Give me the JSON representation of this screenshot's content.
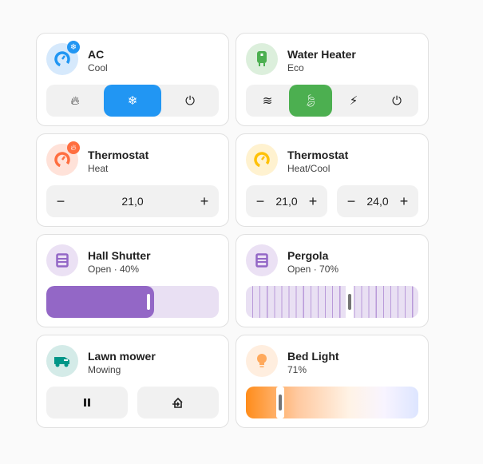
{
  "cards": [
    {
      "title": "AC",
      "subtitle": "Cool",
      "icon": "thermostat-icon",
      "badge_icon": "snowflake-icon",
      "color": "#2196f3",
      "modes": [
        "heat",
        "cool",
        "off"
      ],
      "active_mode": "cool"
    },
    {
      "title": "Water Heater",
      "subtitle": "Eco",
      "icon": "water-heater-icon",
      "color": "#4caf50",
      "modes": [
        "electric",
        "eco",
        "performance",
        "off"
      ],
      "active_mode": "eco"
    },
    {
      "title": "Thermostat",
      "subtitle": "Heat",
      "icon": "thermostat-icon",
      "badge_icon": "fire-icon",
      "color": "#ff6e40",
      "target": "21,0"
    },
    {
      "title": "Thermostat",
      "subtitle": "Heat/Cool",
      "icon": "thermostat-icon",
      "color": "#ffc107",
      "target_low": "21,0",
      "target_high": "24,0"
    },
    {
      "title": "Hall Shutter",
      "subtitle": "Open · 40%",
      "icon": "shutter-icon",
      "color": "#9367c6",
      "position_percent": 40
    },
    {
      "title": "Pergola",
      "subtitle": "Open · 70%",
      "icon": "shutter-icon",
      "color": "#9367c6",
      "position_percent": 70
    },
    {
      "title": "Lawn mower",
      "subtitle": "Mowing",
      "icon": "robot-mower-icon",
      "color": "#009688",
      "actions": [
        "pause",
        "return-home"
      ]
    },
    {
      "title": "Bed Light",
      "subtitle": "71%",
      "icon": "lightbulb-icon",
      "color": "#ff9800",
      "brightness_percent": 71
    }
  ],
  "symbols": {
    "minus": "−",
    "plus": "+"
  }
}
